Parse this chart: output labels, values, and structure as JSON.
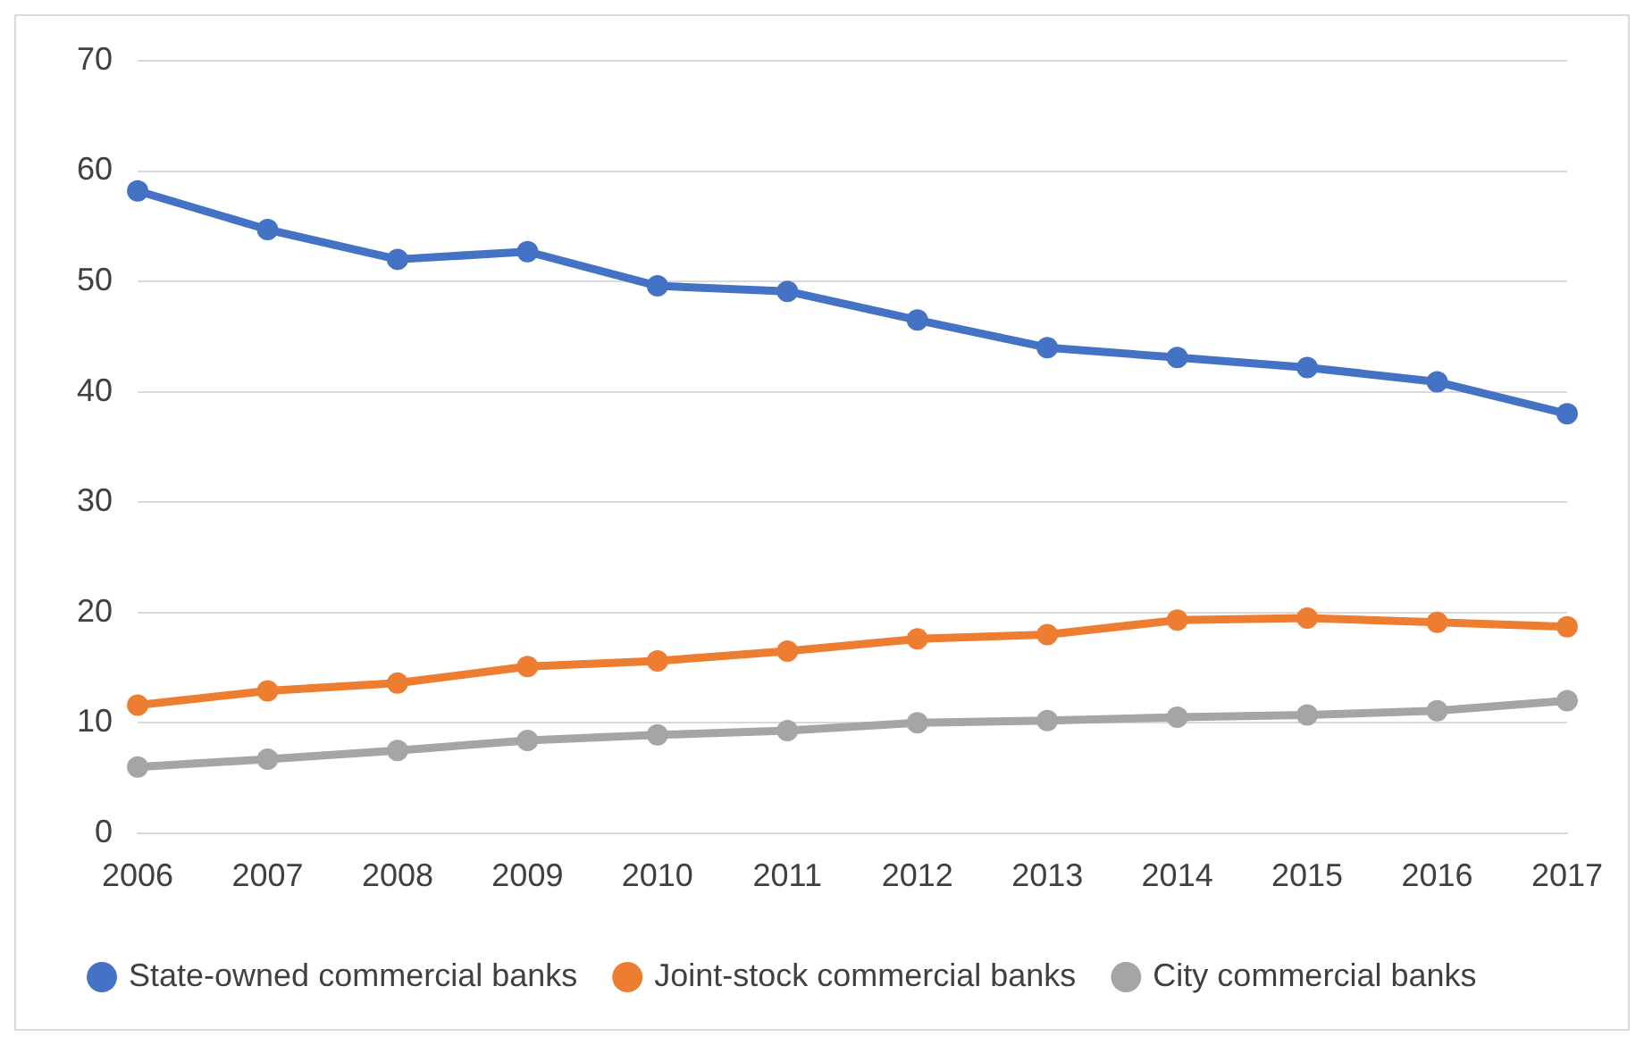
{
  "chart_data": {
    "type": "line",
    "categories": [
      "2006",
      "2007",
      "2008",
      "2009",
      "2010",
      "2011",
      "2012",
      "2013",
      "2014",
      "2015",
      "2016",
      "2017"
    ],
    "series": [
      {
        "name": "State-owned commercial banks",
        "color": "#4472c4",
        "values": [
          58.2,
          54.7,
          52.0,
          52.7,
          49.6,
          49.1,
          46.5,
          44.0,
          43.1,
          42.2,
          40.9,
          38.0
        ]
      },
      {
        "name": "Joint-stock commercial banks",
        "color": "#ed7d31",
        "values": [
          11.6,
          12.9,
          13.6,
          15.1,
          15.6,
          16.5,
          17.6,
          18.0,
          19.3,
          19.5,
          19.1,
          18.7
        ]
      },
      {
        "name": "City commercial banks",
        "color": "#a5a5a5",
        "values": [
          6.0,
          6.7,
          7.5,
          8.4,
          8.9,
          9.3,
          10.0,
          10.2,
          10.5,
          10.7,
          11.1,
          12.0
        ]
      }
    ],
    "ylim": [
      0,
      70
    ],
    "yticks": [
      0,
      10,
      20,
      30,
      40,
      50,
      60,
      70
    ],
    "grid": "y",
    "legend": "bottom",
    "marker": "circle",
    "line_style": "solid"
  }
}
